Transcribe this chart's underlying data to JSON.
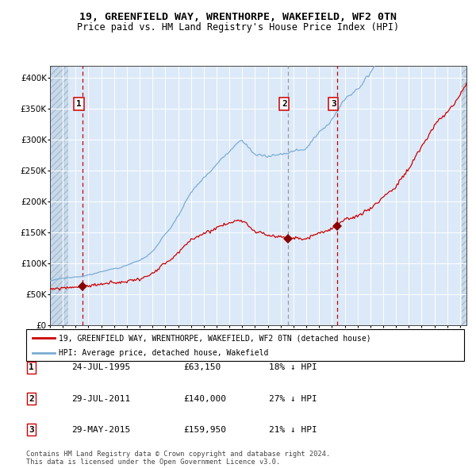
{
  "title1": "19, GREENFIELD WAY, WRENTHORPE, WAKEFIELD, WF2 0TN",
  "title2": "Price paid vs. HM Land Registry's House Price Index (HPI)",
  "legend_label_red": "19, GREENFIELD WAY, WRENTHORPE, WAKEFIELD, WF2 0TN (detached house)",
  "legend_label_blue": "HPI: Average price, detached house, Wakefield",
  "transactions": [
    {
      "label": "1",
      "date": "24-JUL-1995",
      "price": 63150,
      "pct": "18%",
      "dir": "↓",
      "year": 1995.56
    },
    {
      "label": "2",
      "date": "29-JUL-2011",
      "price": 140000,
      "pct": "27%",
      "dir": "↓",
      "year": 2011.57
    },
    {
      "label": "3",
      "date": "29-MAY-2015",
      "price": 159950,
      "pct": "21%",
      "dir": "↓",
      "year": 2015.41
    }
  ],
  "footer": "Contains HM Land Registry data © Crown copyright and database right 2024.\nThis data is licensed under the Open Government Licence v3.0.",
  "bg_color": "#dce9f8",
  "hatch_color": "#b8cfe0",
  "grid_color": "#ffffff",
  "red_line_color": "#cc0000",
  "blue_line_color": "#7aadd4",
  "marker_color": "#880000",
  "vline1_color": "#cc0000",
  "vline2_color": "#999999",
  "vline3_color": "#cc0000",
  "ylim": [
    0,
    420000
  ],
  "xlim_start": 1993.0,
  "xlim_end": 2025.5,
  "hpi_seed": 17,
  "red_seed": 99
}
